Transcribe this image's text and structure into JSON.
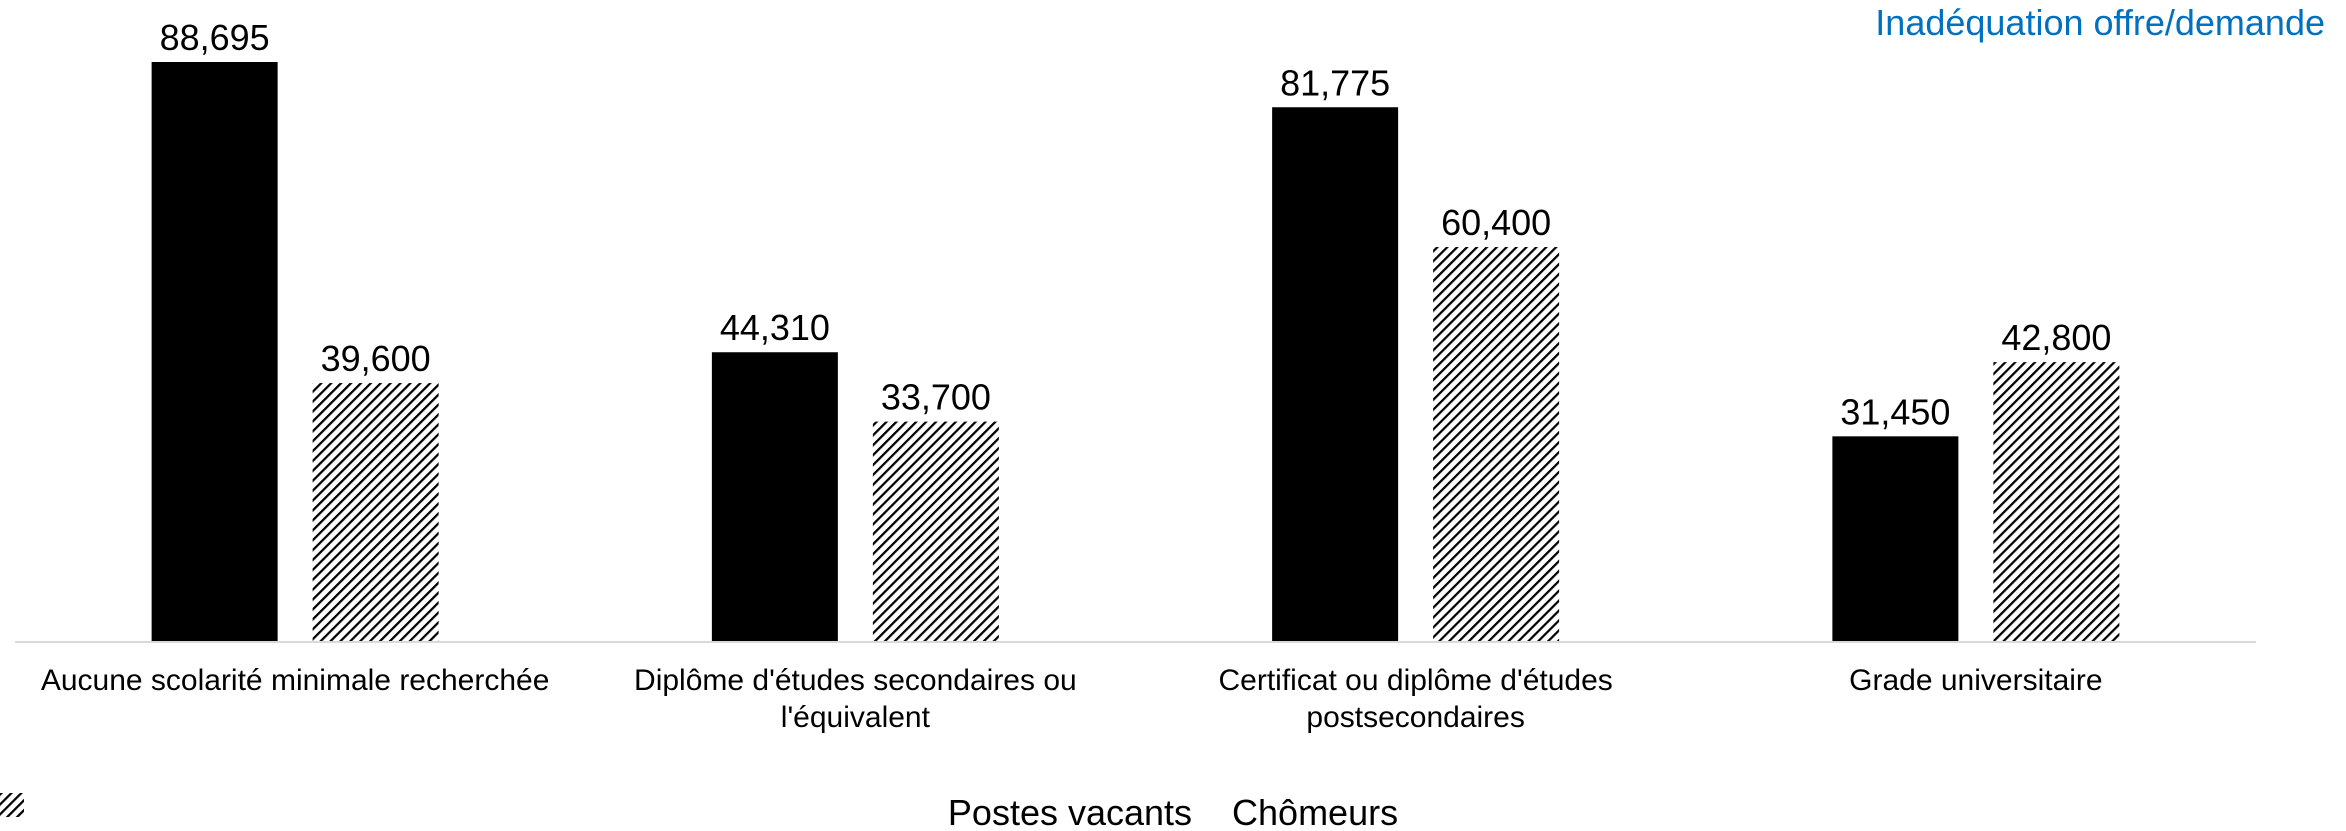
{
  "chart_data": {
    "type": "bar",
    "title": "Inadéquation offre/demande",
    "categories": [
      "Aucune scolarité minimale recherchée",
      "Diplôme d'études secondaires ou l'équivalent",
      "Certificat ou diplôme d'études postsecondaires",
      "Grade universitaire"
    ],
    "series": [
      {
        "name": "Postes vacants",
        "color": "#000000",
        "values": [
          88695,
          44310,
          81775,
          31450
        ],
        "value_labels": [
          "88,695",
          "44,310",
          "81,775",
          "31,450"
        ]
      },
      {
        "name": "Chômeurs",
        "color": "#000000",
        "hatch": true,
        "values": [
          39600,
          33700,
          60400,
          42800
        ],
        "value_labels": [
          "39,600",
          "33,700",
          "60,400",
          "42,800"
        ]
      }
    ],
    "legend": "bottom"
  }
}
